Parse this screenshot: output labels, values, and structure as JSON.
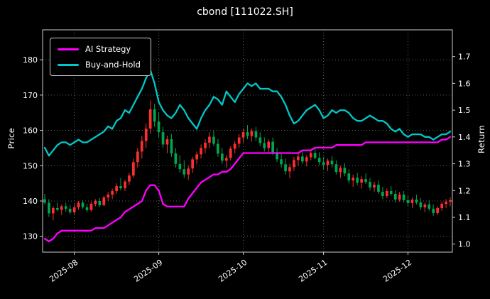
{
  "title": "cbond [111022.SH]",
  "colors": {
    "background": "#000000",
    "text": "#ffffff",
    "grid": "#6e6e6e",
    "axis": "#cccccc",
    "candle_up": "#ff2e2e",
    "candle_down": "#00a550",
    "strategy": "#ff00ff",
    "buyhold": "#00c8c8"
  },
  "legend": {
    "items": [
      {
        "label": "AI Strategy",
        "series": "strategy"
      },
      {
        "label": "Buy-and-Hold",
        "series": "buyhold"
      }
    ]
  },
  "chart_data": {
    "type": "candlestick+line",
    "title": "cbond [111022.SH]",
    "ylabel_left": "Price",
    "ylabel_right": "Return",
    "grid": true,
    "legend_position": "upper left",
    "ylim_price": [
      125.5,
      188.5
    ],
    "ylim_return": [
      0.97,
      1.8
    ],
    "yticks_price": [
      130,
      140,
      150,
      160,
      170,
      180
    ],
    "yticks_return": [
      1.0,
      1.1,
      1.2,
      1.3,
      1.4,
      1.5,
      1.6,
      1.7
    ],
    "xticks": [
      {
        "label": "2025-08",
        "index": 7
      },
      {
        "label": "2025-09",
        "index": 27
      },
      {
        "label": "2025-10",
        "index": 47
      },
      {
        "label": "2025-11",
        "index": 66
      },
      {
        "label": "2025-12",
        "index": 86
      }
    ],
    "candles": {
      "open": [
        140.5,
        139.5,
        136.5,
        138.0,
        137.5,
        138.5,
        137.8,
        136.8,
        138.2,
        139.5,
        138.2,
        137.4,
        139.2,
        140.0,
        138.8,
        141.0,
        141.8,
        142.8,
        144.2,
        143.6,
        145.5,
        147.2,
        151.0,
        154.0,
        157.0,
        160.5,
        166.0,
        162.5,
        159.5,
        156.0,
        157.5,
        153.5,
        150.5,
        149.0,
        147.5,
        149.2,
        151.8,
        153.2,
        155.0,
        156.5,
        158.2,
        156.2,
        153.4,
        151.4,
        152.2,
        154.8,
        156.2,
        158.0,
        159.5,
        158.4,
        159.8,
        158.0,
        156.4,
        155.0,
        156.8,
        153.8,
        151.8,
        150.4,
        148.4,
        149.6,
        151.6,
        152.6,
        151.2,
        152.4,
        153.6,
        152.2,
        151.0,
        150.2,
        151.4,
        150.4,
        148.2,
        149.4,
        147.8,
        145.8,
        146.6,
        145.2,
        146.2,
        145.4,
        143.8,
        144.6,
        142.6,
        141.4,
        142.8,
        142.0,
        140.4,
        141.8,
        140.2,
        139.4,
        140.4,
        139.6,
        138.2,
        139.0,
        137.8,
        136.6,
        138.0,
        139.2,
        139.8
      ],
      "high": [
        142.0,
        140.5,
        138.5,
        139.5,
        139.0,
        139.5,
        138.8,
        139.0,
        140.0,
        140.2,
        139.2,
        139.8,
        140.5,
        140.8,
        141.5,
        142.5,
        143.5,
        145.0,
        146.5,
        146.0,
        148.0,
        152.0,
        155.0,
        158.5,
        162.0,
        168.5,
        167.5,
        165.0,
        161.0,
        158.5,
        159.0,
        155.0,
        153.0,
        151.5,
        150.0,
        152.5,
        154.0,
        156.0,
        157.5,
        159.5,
        160.0,
        157.5,
        155.0,
        153.0,
        155.5,
        157.0,
        159.0,
        160.5,
        161.5,
        160.5,
        161.0,
        159.5,
        158.0,
        157.5,
        158.0,
        155.0,
        153.5,
        152.0,
        150.5,
        152.5,
        153.5,
        154.0,
        153.0,
        154.5,
        155.0,
        153.8,
        152.5,
        152.0,
        152.8,
        151.5,
        150.0,
        150.8,
        149.0,
        147.5,
        148.0,
        147.0,
        147.8,
        146.5,
        145.5,
        145.8,
        144.0,
        143.5,
        144.2,
        143.0,
        142.5,
        142.8,
        141.5,
        141.0,
        141.8,
        140.8,
        139.5,
        140.2,
        139.0,
        138.5,
        139.8,
        140.5,
        141.0
      ],
      "low": [
        139.0,
        135.5,
        134.5,
        137.0,
        136.0,
        137.0,
        136.2,
        136.0,
        137.5,
        137.8,
        136.8,
        137.0,
        138.5,
        138.2,
        138.5,
        140.0,
        140.5,
        142.0,
        143.0,
        142.8,
        144.5,
        146.5,
        149.5,
        152.0,
        155.0,
        159.0,
        161.0,
        158.0,
        155.0,
        153.5,
        152.5,
        149.5,
        148.0,
        146.5,
        146.0,
        148.0,
        150.5,
        152.0,
        153.5,
        155.0,
        155.5,
        152.5,
        150.5,
        149.5,
        151.5,
        153.5,
        155.0,
        156.5,
        157.5,
        156.8,
        157.0,
        155.5,
        154.0,
        153.8,
        153.0,
        151.0,
        149.5,
        147.5,
        146.5,
        148.5,
        150.0,
        150.5,
        149.8,
        151.5,
        151.8,
        150.2,
        149.0,
        148.5,
        149.5,
        147.5,
        146.5,
        147.0,
        145.0,
        144.0,
        144.5,
        143.5,
        144.8,
        143.0,
        142.5,
        142.0,
        140.5,
        140.8,
        141.5,
        139.5,
        139.8,
        139.5,
        138.5,
        138.0,
        139.0,
        137.5,
        136.8,
        137.2,
        135.8,
        136.0,
        137.2,
        138.0,
        138.5
      ],
      "close": [
        139.5,
        136.5,
        138.0,
        137.5,
        138.5,
        137.8,
        136.8,
        138.2,
        139.5,
        138.2,
        137.4,
        139.2,
        140.0,
        138.8,
        141.0,
        141.8,
        142.8,
        144.2,
        143.6,
        145.5,
        147.2,
        151.0,
        154.0,
        157.0,
        160.5,
        166.0,
        162.5,
        159.5,
        156.0,
        157.5,
        153.5,
        150.5,
        149.0,
        147.5,
        149.2,
        151.8,
        153.2,
        155.0,
        156.5,
        158.2,
        156.2,
        153.4,
        151.4,
        152.2,
        154.8,
        156.2,
        158.0,
        159.5,
        158.4,
        159.8,
        158.0,
        156.4,
        155.0,
        156.8,
        153.8,
        151.8,
        150.4,
        148.4,
        149.6,
        151.6,
        152.6,
        151.2,
        152.4,
        153.6,
        152.2,
        151.0,
        150.2,
        151.4,
        150.4,
        148.2,
        149.4,
        147.8,
        145.8,
        146.6,
        145.2,
        146.2,
        145.4,
        143.8,
        144.6,
        142.6,
        141.4,
        142.8,
        142.0,
        140.4,
        141.8,
        140.2,
        139.4,
        140.4,
        139.6,
        138.2,
        139.0,
        137.8,
        136.6,
        138.0,
        139.2,
        139.8,
        140.2
      ]
    },
    "series": [
      {
        "name": "AI Strategy",
        "key": "strategy",
        "color": "#ff00ff",
        "axis": "return",
        "values": [
          1.02,
          1.01,
          1.02,
          1.04,
          1.05,
          1.05,
          1.05,
          1.05,
          1.05,
          1.05,
          1.05,
          1.05,
          1.06,
          1.06,
          1.06,
          1.07,
          1.08,
          1.09,
          1.1,
          1.12,
          1.13,
          1.14,
          1.15,
          1.16,
          1.2,
          1.22,
          1.22,
          1.2,
          1.15,
          1.14,
          1.14,
          1.14,
          1.14,
          1.14,
          1.17,
          1.19,
          1.21,
          1.23,
          1.24,
          1.25,
          1.26,
          1.26,
          1.27,
          1.27,
          1.28,
          1.3,
          1.32,
          1.34,
          1.34,
          1.34,
          1.34,
          1.34,
          1.34,
          1.34,
          1.34,
          1.34,
          1.34,
          1.34,
          1.34,
          1.34,
          1.34,
          1.35,
          1.35,
          1.35,
          1.36,
          1.36,
          1.36,
          1.36,
          1.36,
          1.37,
          1.37,
          1.37,
          1.37,
          1.37,
          1.37,
          1.37,
          1.38,
          1.38,
          1.38,
          1.38,
          1.38,
          1.38,
          1.38,
          1.38,
          1.38,
          1.38,
          1.38,
          1.38,
          1.38,
          1.38,
          1.38,
          1.38,
          1.38,
          1.38,
          1.39,
          1.39,
          1.4
        ]
      },
      {
        "name": "Buy-and-Hold",
        "key": "buyhold",
        "color": "#00c8c8",
        "axis": "return",
        "values": [
          1.36,
          1.33,
          1.35,
          1.37,
          1.38,
          1.38,
          1.37,
          1.38,
          1.39,
          1.38,
          1.38,
          1.39,
          1.4,
          1.41,
          1.42,
          1.44,
          1.43,
          1.46,
          1.47,
          1.5,
          1.49,
          1.52,
          1.55,
          1.58,
          1.62,
          1.65,
          1.6,
          1.53,
          1.5,
          1.48,
          1.47,
          1.49,
          1.52,
          1.5,
          1.47,
          1.45,
          1.43,
          1.47,
          1.5,
          1.52,
          1.55,
          1.54,
          1.52,
          1.57,
          1.55,
          1.53,
          1.56,
          1.58,
          1.6,
          1.59,
          1.6,
          1.58,
          1.58,
          1.58,
          1.57,
          1.57,
          1.55,
          1.52,
          1.48,
          1.45,
          1.46,
          1.48,
          1.5,
          1.51,
          1.52,
          1.5,
          1.47,
          1.48,
          1.5,
          1.49,
          1.5,
          1.5,
          1.49,
          1.47,
          1.46,
          1.46,
          1.47,
          1.48,
          1.47,
          1.46,
          1.46,
          1.45,
          1.43,
          1.42,
          1.43,
          1.41,
          1.4,
          1.41,
          1.41,
          1.41,
          1.4,
          1.4,
          1.39,
          1.4,
          1.41,
          1.41,
          1.42
        ]
      }
    ]
  }
}
